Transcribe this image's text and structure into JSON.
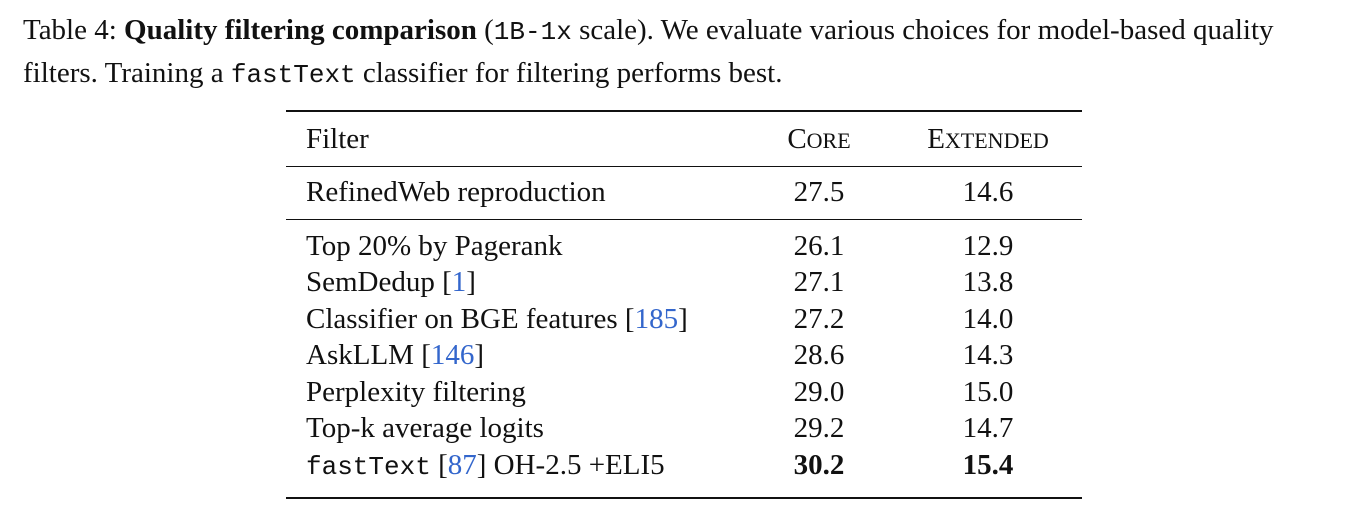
{
  "caption": {
    "label": "Table 4:",
    "title": "Quality filtering comparison",
    "scale_open": "(",
    "scale_code": "1B-1x",
    "scale_close": " scale). We evaluate various choices for model-based quality filters. Training a ",
    "code_word": "fastText",
    "tail": " classifier for filtering performs best."
  },
  "table": {
    "headers": {
      "filter": "Filter",
      "core": "Core",
      "extended": "Extended"
    },
    "baseline": {
      "filter": "RefinedWeb reproduction",
      "core": "27.5",
      "extended": "14.6"
    },
    "rows": [
      {
        "filter": "Top 20% by Pagerank",
        "core": "26.1",
        "extended": "12.9"
      },
      {
        "filter": "SemDedup [",
        "cite": "1",
        "close": "]",
        "core": "27.1",
        "extended": "13.8"
      },
      {
        "filter": "Classifier on BGE features [",
        "cite": "185",
        "close": "]",
        "core": "27.2",
        "extended": "14.0"
      },
      {
        "filter": "AskLLM [",
        "cite": "146",
        "close": "]",
        "core": "28.6",
        "extended": "14.3"
      },
      {
        "filter": "Perplexity filtering",
        "core": "29.0",
        "extended": "15.0"
      },
      {
        "filter": "Top-k average logits",
        "core": "29.2",
        "extended": "14.7"
      }
    ],
    "best": {
      "code": "fastText",
      "open": " [",
      "cite": "87",
      "rest": "] OH-2.5 +ELI5",
      "core": "30.2",
      "extended": "15.4"
    }
  }
}
